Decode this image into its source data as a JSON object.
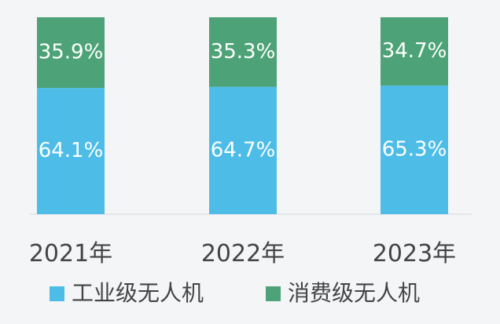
{
  "chart_data": {
    "type": "bar",
    "stacked": true,
    "categories": [
      "2021年",
      "2022年",
      "2023年"
    ],
    "series": [
      {
        "name": "工业级无人机",
        "values": [
          64.1,
          64.7,
          65.3
        ],
        "labels": [
          "64.1%",
          "64.7%",
          "65.3%"
        ],
        "color": "#4dbde8"
      },
      {
        "name": "消费级无人机",
        "values": [
          35.9,
          35.3,
          34.7
        ],
        "labels": [
          "35.9%",
          "35.3%",
          "34.7%"
        ],
        "color": "#4da377"
      }
    ],
    "ylim": [
      0,
      100
    ],
    "legend": "bottom",
    "grid": false
  }
}
